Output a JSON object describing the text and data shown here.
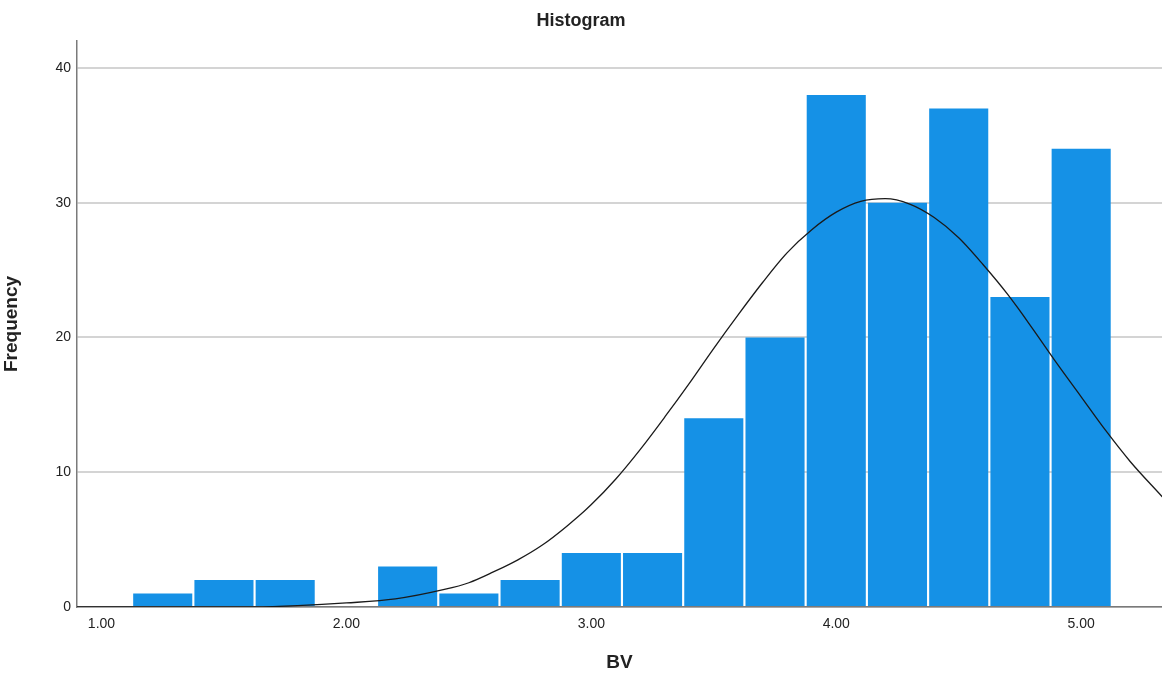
{
  "chart_data": {
    "type": "histogram",
    "title": "Histogram",
    "xlabel": "BV",
    "ylabel": "Frequency",
    "bins": [
      1.125,
      1.375,
      1.625,
      1.875,
      2.125,
      2.375,
      2.625,
      2.875,
      3.125,
      3.375,
      3.625,
      3.875,
      4.125,
      4.375,
      4.625,
      4.875,
      5.125
    ],
    "values": [
      1,
      2,
      2,
      0,
      3,
      1,
      2,
      4,
      4,
      14,
      20,
      38,
      30,
      37,
      23,
      34
    ],
    "color": "#1591e6",
    "series": [
      {
        "type": "line",
        "color": "#1a1a1a",
        "x": [
          0.9,
          1.0,
          1.2,
          1.4,
          1.6,
          1.8,
          2.0,
          2.2,
          2.4,
          2.5,
          2.6,
          2.7,
          2.8,
          2.9,
          3.0,
          3.1,
          3.2,
          3.3,
          3.4,
          3.5,
          3.6,
          3.7,
          3.8,
          3.9,
          4.0,
          4.1,
          4.2,
          4.3,
          4.4,
          4.5,
          4.6,
          4.7,
          4.8,
          4.9,
          5.0,
          5.1,
          5.2,
          5.33
        ],
        "values": [
          0,
          0,
          0,
          0,
          0,
          0.1,
          0.3,
          0.6,
          1.3,
          1.8,
          2.6,
          3.5,
          4.6,
          6.0,
          7.6,
          9.5,
          11.7,
          14.1,
          16.6,
          19.2,
          21.7,
          24.1,
          26.3,
          28.0,
          29.3,
          30.1,
          30.3,
          29.9,
          28.9,
          27.4,
          25.4,
          23.2,
          20.7,
          18.1,
          15.6,
          13.1,
          10.8,
          8.2
        ]
      }
    ],
    "xlim": [
      0.9,
      5.33
    ],
    "xticks": [
      {
        "value": 1,
        "label": "1.00"
      },
      {
        "value": 2,
        "label": "2.00"
      },
      {
        "value": 3,
        "label": "3.00"
      },
      {
        "value": 4,
        "label": "4.00"
      },
      {
        "value": 5,
        "label": "5.00"
      }
    ],
    "ylim": [
      0,
      42
    ],
    "yticks": [
      0,
      10,
      20,
      30,
      40
    ],
    "grid": "y",
    "legend": false
  }
}
